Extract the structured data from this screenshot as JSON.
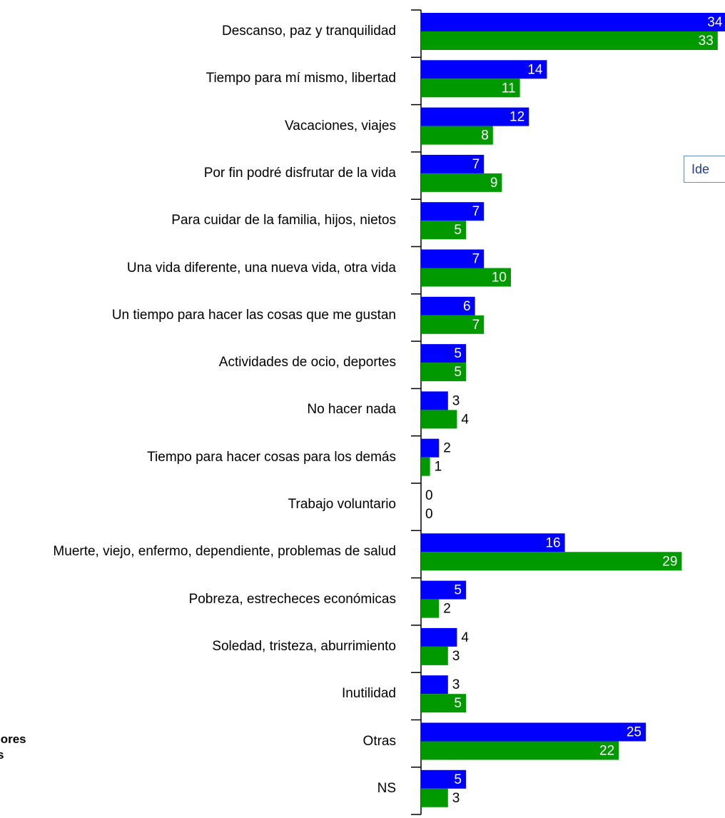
{
  "chart_data": {
    "type": "bar",
    "orientation": "horizontal",
    "categories": [
      "Descanso, paz y tranquilidad",
      "Tiempo para mí mismo, libertad",
      "Vacaciones, viajes",
      "Por fin podré disfrutar de la vida",
      "Para cuidar de la familia, hijos, nietos",
      "Una vida diferente, una nueva vida, otra vida",
      "Un tiempo para hacer las cosas que me gustan",
      "Actividades de ocio, deportes",
      "No hacer nada",
      "Tiempo para hacer cosas para los demás",
      "Trabajo voluntario",
      "Muerte, viejo, enfermo, dependiente, problemas de salud",
      "Pobreza, estrecheces económicas",
      "Soledad, tristeza, aburrimiento",
      "Inutilidad",
      "Otras",
      "NS"
    ],
    "series": [
      {
        "color": "#0000ff",
        "values": [
          34,
          14,
          12,
          7,
          7,
          7,
          6,
          5,
          3,
          2,
          0,
          16,
          5,
          4,
          3,
          25,
          5
        ]
      },
      {
        "color": "#009900",
        "values": [
          33,
          11,
          8,
          9,
          5,
          10,
          7,
          5,
          4,
          1,
          0,
          29,
          2,
          3,
          5,
          22,
          3
        ]
      }
    ],
    "annotations": [
      "Ide",
      "lores",
      "s"
    ]
  }
}
